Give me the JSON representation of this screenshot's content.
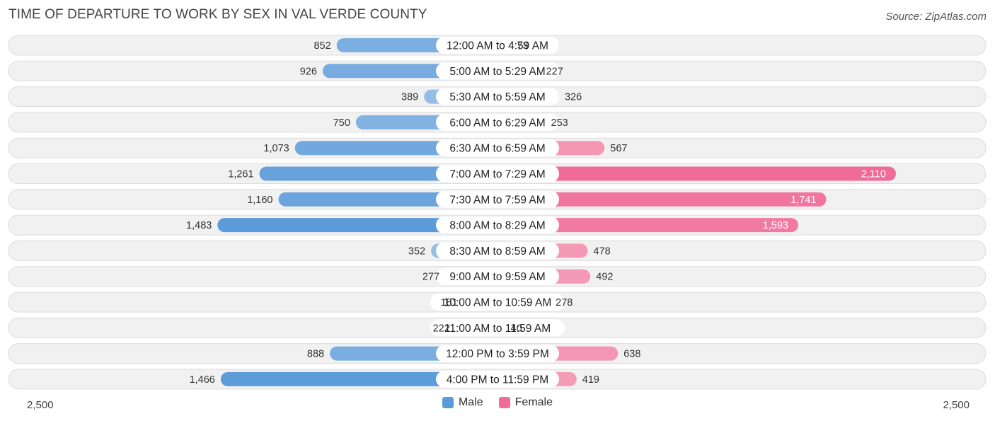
{
  "title": "TIME OF DEPARTURE TO WORK BY SEX IN VAL VERDE COUNTY",
  "source": "Source: ZipAtlas.com",
  "colors": {
    "male": "#5b9bd9",
    "male_light": "#a9c9ec",
    "female": "#f06c98",
    "female_light": "#f5a7c0",
    "row_bg": "#f1f1f1",
    "row_border": "#dcdcdc"
  },
  "legend": {
    "male": "Male",
    "female": "Female"
  },
  "chart_data": {
    "type": "bar",
    "orientation": "horizontal-diverging",
    "categories": [
      "12:00 AM to 4:59 AM",
      "5:00 AM to 5:29 AM",
      "5:30 AM to 5:59 AM",
      "6:00 AM to 6:29 AM",
      "6:30 AM to 6:59 AM",
      "7:00 AM to 7:29 AM",
      "7:30 AM to 7:59 AM",
      "8:00 AM to 8:29 AM",
      "8:30 AM to 8:59 AM",
      "9:00 AM to 9:59 AM",
      "10:00 AM to 10:59 AM",
      "11:00 AM to 11:59 AM",
      "12:00 PM to 3:59 PM",
      "4:00 PM to 11:59 PM"
    ],
    "series": [
      {
        "name": "Male",
        "values": [
          852,
          926,
          389,
          750,
          1073,
          1261,
          1160,
          1483,
          352,
          277,
          181,
          222,
          888,
          1466
        ],
        "labels": [
          "852",
          "926",
          "389",
          "750",
          "1,073",
          "1,261",
          "1,160",
          "1,483",
          "352",
          "277",
          "181",
          "222",
          "888",
          "1,466"
        ]
      },
      {
        "name": "Female",
        "values": [
          73,
          227,
          326,
          253,
          567,
          2110,
          1741,
          1593,
          478,
          492,
          278,
          40,
          638,
          419
        ],
        "labels": [
          "73",
          "227",
          "326",
          "253",
          "567",
          "2,110",
          "1,741",
          "1,593",
          "478",
          "492",
          "278",
          "40",
          "638",
          "419"
        ]
      }
    ],
    "xlim": [
      -2500,
      2500
    ],
    "axis_labels": {
      "left": "2,500",
      "right": "2,500"
    },
    "legend_position": "bottom-center"
  }
}
